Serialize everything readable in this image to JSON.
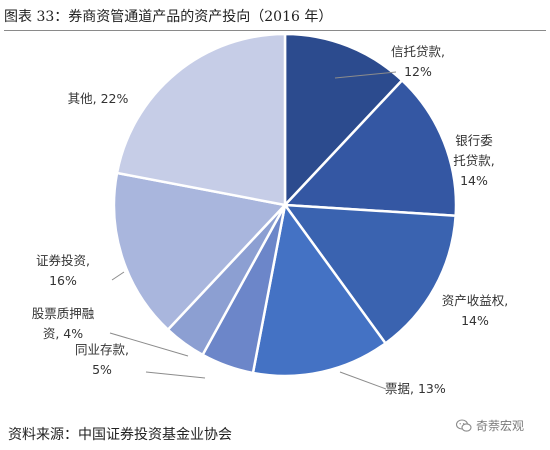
{
  "header": {
    "title": "图表 33：券商资管通道产品的资产投向（2016 年）"
  },
  "source": "资料来源：中国证券投资基金业协会",
  "watermark": {
    "text": "奇萘宏观",
    "icon": "wechat-icon"
  },
  "chart_data": {
    "type": "pie",
    "title": "图表 33：券商资管通道产品的资产投向（2016 年）",
    "labels": [
      "信托贷款",
      "银行委托贷款",
      "资产收益权",
      "票据",
      "同业存款",
      "股票质押融资",
      "证券投资",
      "其他"
    ],
    "values": [
      12,
      14,
      14,
      13,
      5,
      4,
      16,
      22
    ],
    "unit": "%",
    "slice_labels": [
      [
        "信托贷款,",
        "12%"
      ],
      [
        "银行委",
        "托贷款,",
        "14%"
      ],
      [
        "资产收益权,",
        "14%"
      ],
      [
        "票据, 13%"
      ],
      [
        "同业存款,",
        "5%"
      ],
      [
        "股票质押融",
        "资, 4%"
      ],
      [
        "证券投资,",
        "16%"
      ],
      [
        "其他, 22%"
      ]
    ],
    "colors": [
      "#2c4b8e",
      "#3457a3",
      "#3a63b0",
      "#4472c4",
      "#6c86c9",
      "#8c9fd2",
      "#a9b6dd",
      "#c6cde7"
    ]
  }
}
